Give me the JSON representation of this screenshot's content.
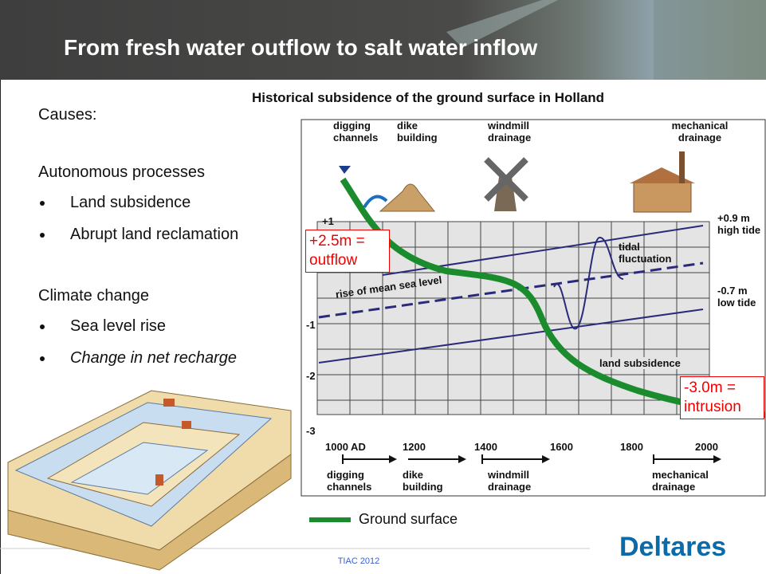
{
  "header": {
    "title": "From fresh water outflow to salt water inflow"
  },
  "causes": {
    "heading": "Causes:",
    "groups": [
      {
        "heading": "Autonomous processes",
        "items": [
          "Land subsidence",
          "Abrupt land reclamation"
        ]
      },
      {
        "heading": "Climate change",
        "items": [
          "Sea level rise",
          "Change in net recharge"
        ]
      }
    ]
  },
  "figure": {
    "title": "Historical subsidence of the ground surface in Holland",
    "top_labels": [
      "digging channels",
      "dike building",
      "windmill drainage",
      "mechanical drainage"
    ],
    "y_labels": [
      "+1",
      "-1",
      "-2",
      "-3"
    ],
    "high_tide": "+0.9 m high tide",
    "low_tide": "-0.7 m low tide",
    "tidal": "tidal fluctuation",
    "mean_sea": "rise of mean sea level",
    "subsidence": "land subsidence",
    "outflow": "+2.5m = outflow",
    "intrusion": "-3.0m = intrusion",
    "timeline_years": [
      "1000 AD",
      "1200",
      "1400",
      "1600",
      "1800",
      "2000"
    ],
    "timeline_labels": [
      "digging channels",
      "dike building",
      "windmill drainage",
      "mechanical drainage"
    ],
    "legend": "Ground surface"
  },
  "footer": {
    "event": "TIAC 2012",
    "logo": "Deltares"
  }
}
